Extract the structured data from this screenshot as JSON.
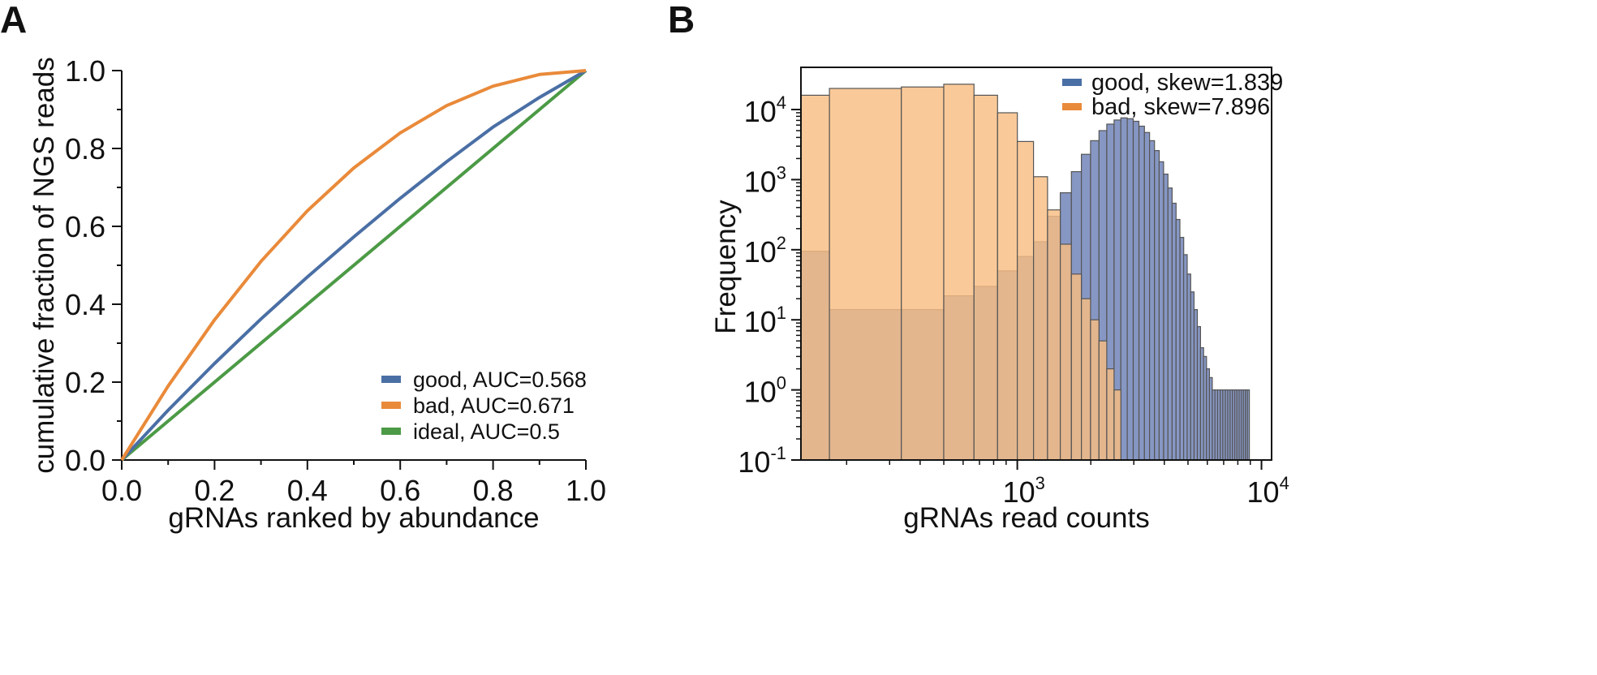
{
  "chart_data": [
    {
      "panel": "A",
      "type": "line",
      "xlabel": "gRNAs ranked by abundance",
      "ylabel": "cumulative fraction of NGS reads",
      "xlim": [
        0,
        1
      ],
      "ylim": [
        0,
        1
      ],
      "xticks": [
        "0.0",
        "0.2",
        "0.4",
        "0.6",
        "0.8",
        "1.0"
      ],
      "yticks": [
        "0.0",
        "0.2",
        "0.4",
        "0.6",
        "0.8",
        "1.0"
      ],
      "grid": false,
      "legend_position": "bottom-right",
      "series": [
        {
          "name": "good, AUC=0.568",
          "color": "#4a6fa5",
          "x": [
            0,
            0.1,
            0.2,
            0.3,
            0.4,
            0.5,
            0.6,
            0.7,
            0.8,
            0.9,
            1.0
          ],
          "y": [
            0,
            0.128,
            0.248,
            0.362,
            0.47,
            0.573,
            0.672,
            0.766,
            0.855,
            0.931,
            1.0
          ]
        },
        {
          "name": "bad, AUC=0.671",
          "color": "#e98a3a",
          "x": [
            0,
            0.1,
            0.2,
            0.3,
            0.4,
            0.5,
            0.6,
            0.7,
            0.8,
            0.9,
            1.0
          ],
          "y": [
            0,
            0.19,
            0.36,
            0.51,
            0.64,
            0.75,
            0.84,
            0.91,
            0.96,
            0.99,
            1.0
          ]
        },
        {
          "name": "ideal, AUC=0.5",
          "color": "#4c9a46",
          "x": [
            0,
            1.0
          ],
          "y": [
            0,
            1.0
          ]
        }
      ]
    },
    {
      "panel": "B",
      "type": "bar",
      "subtype": "histogram",
      "xlabel": "gRNAs read counts",
      "ylabel": "Frequency",
      "xscale": "log",
      "yscale": "log",
      "xlim": [
        130,
        11000
      ],
      "ylim": [
        0.1,
        40000
      ],
      "xticks": [
        {
          "base": "10",
          "exp": "3",
          "value": 1000
        },
        {
          "base": "10",
          "exp": "4",
          "value": 10000
        }
      ],
      "yticks": [
        {
          "base": "10",
          "exp": "-1",
          "value": 0.1
        },
        {
          "base": "10",
          "exp": "0",
          "value": 1
        },
        {
          "base": "10",
          "exp": "1",
          "value": 10
        },
        {
          "base": "10",
          "exp": "2",
          "value": 100
        },
        {
          "base": "10",
          "exp": "3",
          "value": 1000
        },
        {
          "base": "10",
          "exp": "4",
          "value": 10000
        }
      ],
      "grid": false,
      "legend_position": "top-right",
      "series": [
        {
          "name": "good, skew=1.839",
          "color": "#8797c4",
          "bins": [
            [
              130,
              170,
              95
            ],
            [
              170,
              335,
              14
            ],
            [
              335,
              500,
              14
            ],
            [
              500,
              665,
              22
            ],
            [
              665,
              830,
              30
            ],
            [
              830,
              1000,
              50
            ],
            [
              1000,
              1165,
              80
            ],
            [
              1165,
              1330,
              130
            ],
            [
              1330,
              1500,
              300
            ],
            [
              1500,
              1665,
              650
            ],
            [
              1665,
              1830,
              1300
            ],
            [
              1830,
              1995,
              2300
            ],
            [
              1995,
              2160,
              3600
            ],
            [
              2160,
              2325,
              5000
            ],
            [
              2325,
              2490,
              6200
            ],
            [
              2490,
              2655,
              7100
            ],
            [
              2655,
              2820,
              7600
            ],
            [
              2820,
              2985,
              7400
            ],
            [
              2985,
              3150,
              6800
            ],
            [
              3150,
              3315,
              5800
            ],
            [
              3315,
              3480,
              4700
            ],
            [
              3480,
              3645,
              3600
            ],
            [
              3645,
              3810,
              2600
            ],
            [
              3810,
              3975,
              1800
            ],
            [
              3975,
              4140,
              1200
            ],
            [
              4140,
              4305,
              760
            ],
            [
              4305,
              4470,
              460
            ],
            [
              4470,
              4635,
              270
            ],
            [
              4635,
              4800,
              150
            ],
            [
              4800,
              4965,
              85
            ],
            [
              4965,
              5130,
              45
            ],
            [
              5130,
              5295,
              25
            ],
            [
              5295,
              5460,
              14
            ],
            [
              5460,
              5625,
              8
            ],
            [
              5625,
              5790,
              4
            ],
            [
              5790,
              5955,
              3
            ],
            [
              5955,
              6120,
              2
            ],
            [
              6120,
              6285,
              1.5
            ],
            [
              6285,
              6450,
              1
            ],
            [
              6450,
              6615,
              1
            ],
            [
              6615,
              6780,
              1
            ],
            [
              6780,
              6945,
              1
            ],
            [
              6945,
              7110,
              1
            ],
            [
              7110,
              7275,
              1
            ],
            [
              7275,
              7440,
              1
            ],
            [
              7440,
              7605,
              1
            ],
            [
              7605,
              7770,
              1
            ],
            [
              7770,
              7935,
              1
            ],
            [
              7935,
              8100,
              1
            ],
            [
              8100,
              8265,
              1
            ],
            [
              8265,
              8430,
              1
            ],
            [
              8430,
              8595,
              1
            ],
            [
              8595,
              8760,
              1
            ],
            [
              8760,
              8925,
              1
            ]
          ]
        },
        {
          "name": "bad, skew=7.896",
          "color": "#f8bd82",
          "bins": [
            [
              130,
              170,
              16000
            ],
            [
              170,
              335,
              20000
            ],
            [
              335,
              500,
              21000
            ],
            [
              500,
              665,
              23000
            ],
            [
              665,
              830,
              16000
            ],
            [
              830,
              1000,
              9000
            ],
            [
              1000,
              1165,
              3500
            ],
            [
              1165,
              1330,
              1100
            ],
            [
              1330,
              1500,
              370
            ],
            [
              1500,
              1665,
              120
            ],
            [
              1665,
              1830,
              45
            ],
            [
              1830,
              1995,
              20
            ],
            [
              1995,
              2160,
              10
            ],
            [
              2160,
              2325,
              5
            ],
            [
              2325,
              2490,
              2
            ],
            [
              2490,
              2655,
              1
            ]
          ]
        }
      ]
    }
  ],
  "panel_labels": {
    "a": "A",
    "b": "B"
  }
}
